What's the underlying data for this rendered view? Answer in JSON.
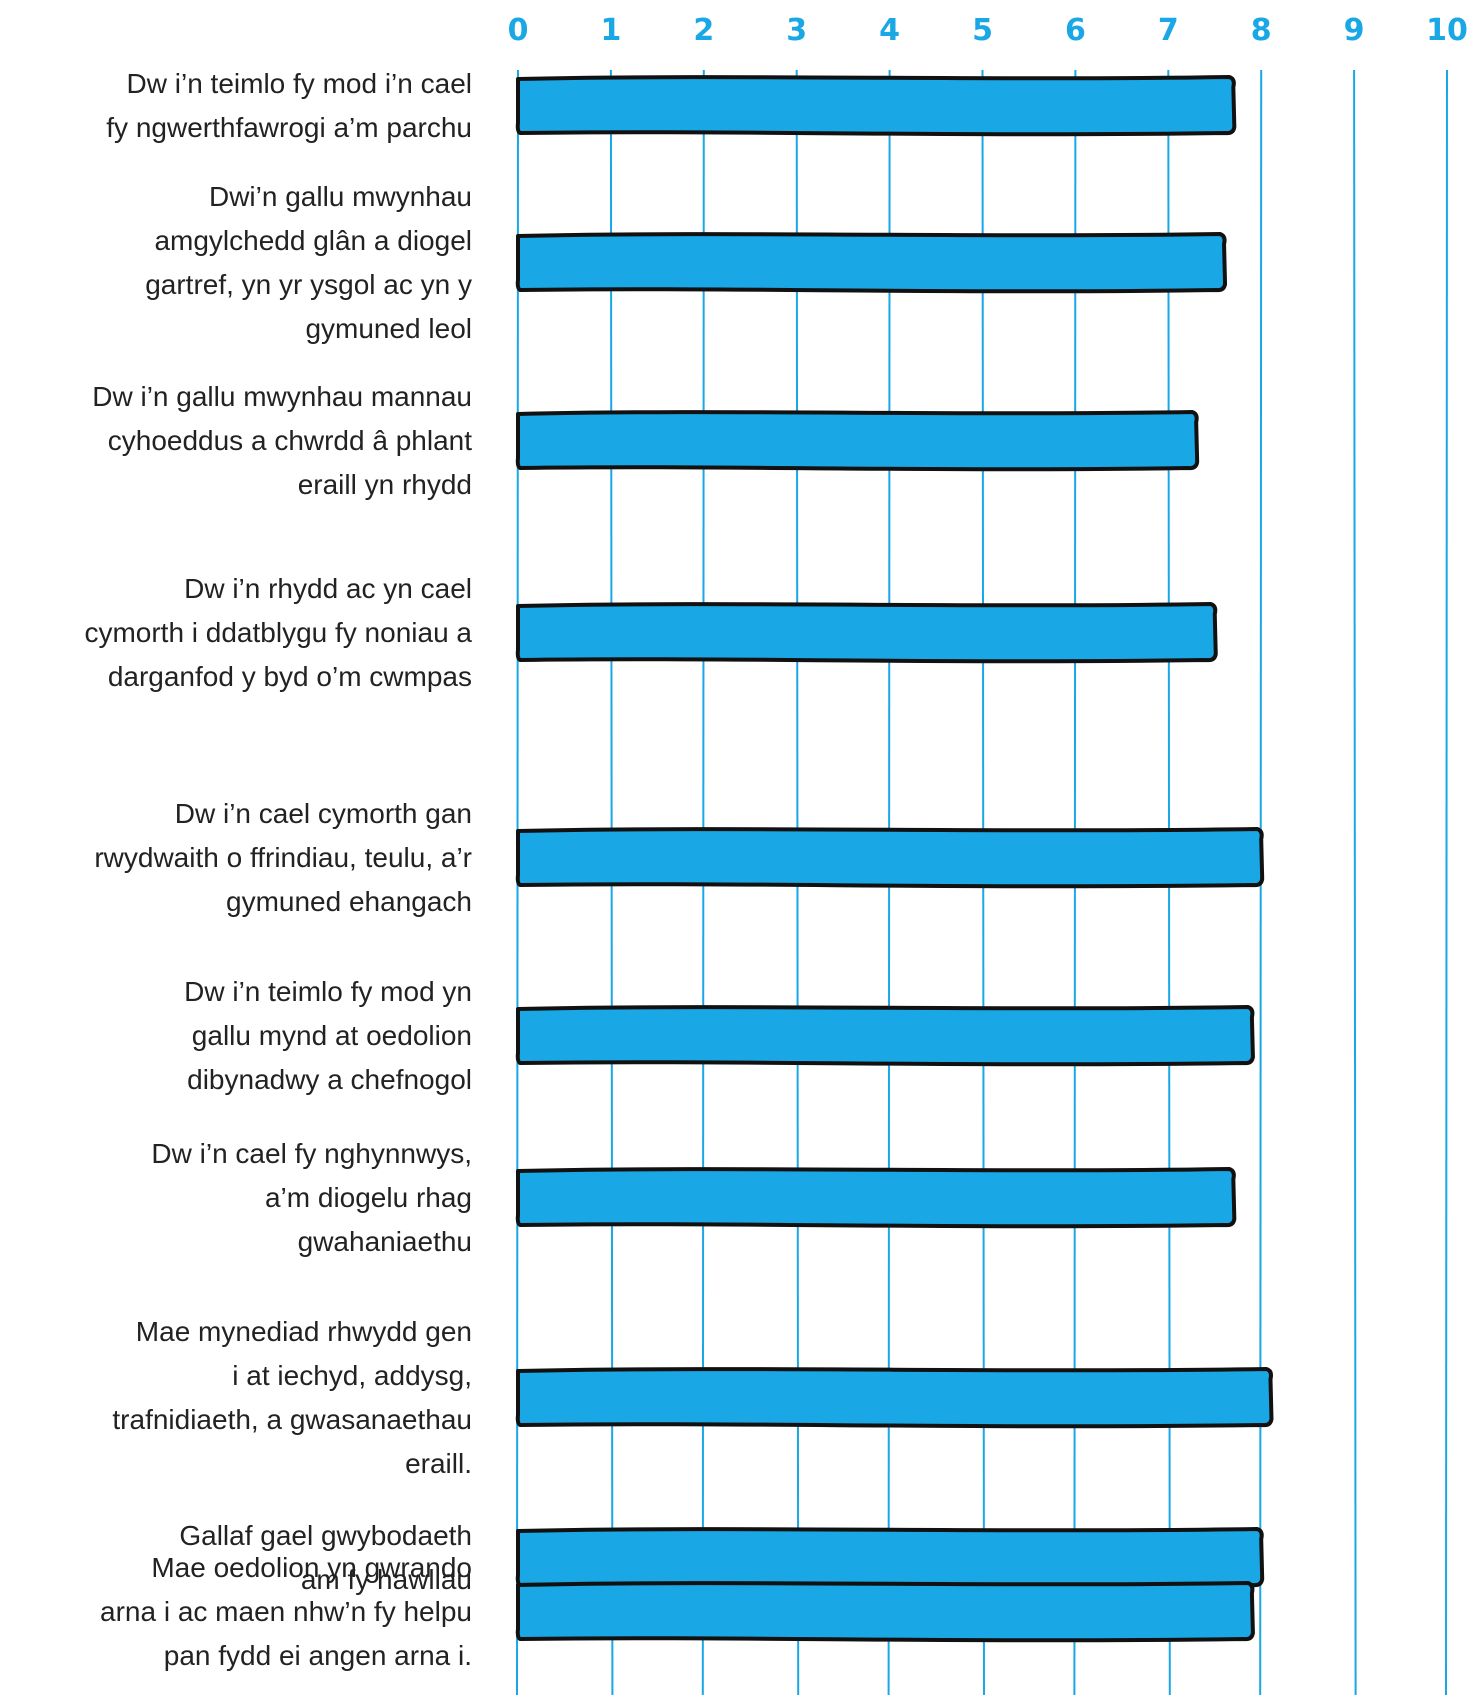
{
  "colors": {
    "bar": "#1aa7e6",
    "bar_outline": "#111111",
    "axis": "#1aa7e6",
    "text": "#222222"
  },
  "chart_data": {
    "type": "bar",
    "orientation": "horizontal",
    "title": "",
    "xlabel": "",
    "ylabel": "",
    "xlim": [
      0,
      10
    ],
    "x_ticks": [
      "0",
      "1",
      "2",
      "3",
      "4",
      "5",
      "6",
      "7",
      "8",
      "9",
      "10"
    ],
    "x_ticks_position": "top",
    "grid": true,
    "categories": [
      [
        "Dw i’n teimlo fy mod i’n cael",
        "fy ngwerthfawrogi a’m parchu"
      ],
      [
        "Dwi’n gallu mwynhau",
        "amgylchedd glân a diogel",
        "gartref, yn yr ysgol ac yn y",
        "gymuned leol"
      ],
      [
        "Dw i’n gallu mwynhau mannau",
        "cyhoeddus a chwrdd â phlant",
        "eraill yn rhydd"
      ],
      [
        "Dw i’n rhydd ac yn cael",
        "cymorth i ddatblygu fy noniau a",
        "darganfod y byd o’m cwmpas"
      ],
      [
        "Dw i’n cael cymorth gan",
        "rwydwaith o ffrindiau, teulu, a’r",
        "gymuned ehangach"
      ],
      [
        "Dw i’n teimlo fy mod yn",
        "gallu mynd at oedolion",
        "dibynadwy a chefnogol"
      ],
      [
        "Dw i’n cael fy nghynnwys,",
        "a’m diogelu rhag",
        "gwahaniaethu"
      ],
      [
        "Mae mynediad rhwydd gen",
        "i at iechyd, addysg,",
        "trafnidiaeth, a gwasanaethau",
        "eraill."
      ],
      [
        "Gallaf gael gwybodaeth",
        "am fy hawliau"
      ],
      [
        "Mae oedolion yn gwrando",
        "arna i ac maen nhw’n fy helpu",
        "pan fydd ei angen arna i."
      ]
    ],
    "values": [
      7.7,
      7.6,
      7.3,
      7.5,
      8.0,
      7.9,
      7.7,
      8.1,
      8.0,
      7.9
    ]
  }
}
